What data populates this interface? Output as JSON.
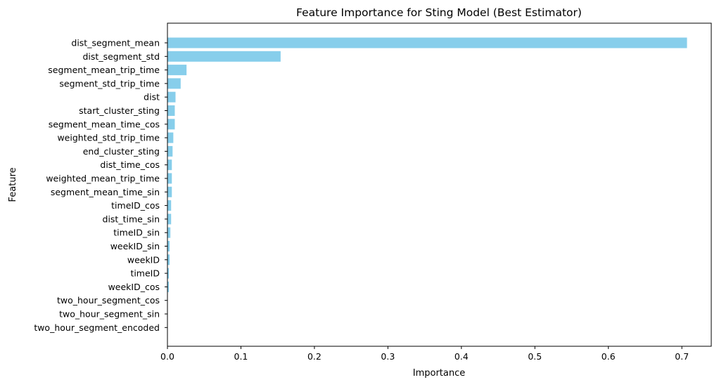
{
  "chart_data": {
    "type": "bar",
    "orientation": "horizontal",
    "title": "Feature Importance for Sting Model (Best Estimator)",
    "xlabel": "Importance",
    "ylabel": "Feature",
    "xlim": [
      0,
      0.74
    ],
    "xticks": [
      0.0,
      0.1,
      0.2,
      0.3,
      0.4,
      0.5,
      0.6,
      0.7
    ],
    "xtick_labels": [
      "0.0",
      "0.1",
      "0.2",
      "0.3",
      "0.4",
      "0.5",
      "0.6",
      "0.7"
    ],
    "bar_color": "#87ceeb",
    "grid": false,
    "categories": [
      "dist_segment_mean",
      "dist_segment_std",
      "segment_mean_trip_time",
      "segment_std_trip_time",
      "dist",
      "start_cluster_sting",
      "segment_mean_time_cos",
      "weighted_std_trip_time",
      "end_cluster_sting",
      "dist_time_cos",
      "weighted_mean_trip_time",
      "segment_mean_time_sin",
      "timeID_cos",
      "dist_time_sin",
      "timeID_sin",
      "weekID_sin",
      "weekID",
      "timeID",
      "weekID_cos",
      "two_hour_segment_cos",
      "two_hour_segment_sin",
      "two_hour_segment_encoded"
    ],
    "values": [
      0.707,
      0.154,
      0.026,
      0.018,
      0.011,
      0.01,
      0.01,
      0.008,
      0.007,
      0.006,
      0.006,
      0.006,
      0.005,
      0.005,
      0.004,
      0.003,
      0.003,
      0.002,
      0.002,
      0.0003,
      0.0002,
      0.0001
    ]
  }
}
